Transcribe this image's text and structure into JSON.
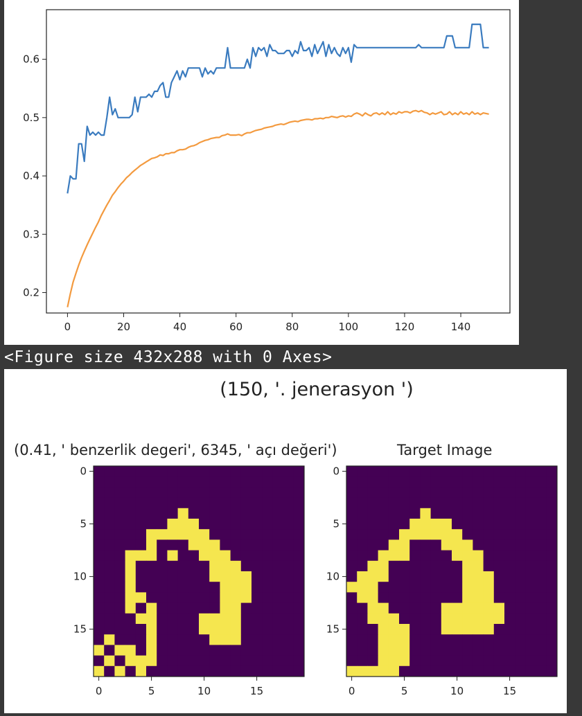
{
  "figure_caption": "<Figure size 432x288 with 0 Axes>",
  "colors": {
    "series_1": "#3a7bbf",
    "series_2": "#f39a3f",
    "low": "#440154",
    "high": "#f5e64f"
  },
  "chart_data": [
    {
      "type": "line",
      "xlim": [
        -7.5,
        157.5
      ],
      "ylim": [
        0.165,
        0.685
      ],
      "xticks": [
        0,
        20,
        40,
        60,
        80,
        100,
        120,
        140
      ],
      "yticks": [
        0.2,
        0.3,
        0.4,
        0.5,
        0.6
      ],
      "grid": false,
      "series": [
        {
          "color": "#3a7bbf",
          "x": [
            0,
            1,
            2,
            3,
            4,
            5,
            6,
            7,
            8,
            9,
            10,
            11,
            12,
            13,
            14,
            15,
            16,
            17,
            18,
            19,
            20,
            21,
            22,
            23,
            24,
            25,
            26,
            27,
            28,
            29,
            30,
            31,
            32,
            33,
            34,
            35,
            36,
            37,
            38,
            39,
            40,
            41,
            42,
            43,
            44,
            45,
            46,
            47,
            48,
            49,
            50,
            51,
            52,
            53,
            54,
            55,
            56,
            57,
            58,
            59,
            60,
            61,
            62,
            63,
            64,
            65,
            66,
            67,
            68,
            69,
            70,
            71,
            72,
            73,
            74,
            75,
            76,
            77,
            78,
            79,
            80,
            81,
            82,
            83,
            84,
            85,
            86,
            87,
            88,
            89,
            90,
            91,
            92,
            93,
            94,
            95,
            96,
            97,
            98,
            99,
            100,
            101,
            102,
            103,
            104,
            105,
            106,
            107,
            108,
            109,
            110,
            111,
            112,
            113,
            114,
            115,
            116,
            117,
            118,
            119,
            120,
            121,
            122,
            123,
            124,
            125,
            126,
            127,
            128,
            129,
            130,
            131,
            132,
            133,
            134,
            135,
            136,
            137,
            138,
            139,
            140,
            141,
            142,
            143,
            144,
            145,
            146,
            147,
            148,
            149,
            150
          ],
          "y": [
            0.37,
            0.4,
            0.395,
            0.395,
            0.455,
            0.455,
            0.425,
            0.485,
            0.47,
            0.475,
            0.47,
            0.475,
            0.47,
            0.47,
            0.5,
            0.535,
            0.505,
            0.515,
            0.5,
            0.5,
            0.5,
            0.5,
            0.5,
            0.505,
            0.535,
            0.51,
            0.535,
            0.535,
            0.535,
            0.54,
            0.535,
            0.545,
            0.545,
            0.555,
            0.56,
            0.535,
            0.535,
            0.56,
            0.57,
            0.58,
            0.565,
            0.58,
            0.57,
            0.585,
            0.585,
            0.585,
            0.585,
            0.585,
            0.57,
            0.585,
            0.575,
            0.58,
            0.575,
            0.585,
            0.585,
            0.585,
            0.585,
            0.62,
            0.585,
            0.585,
            0.585,
            0.585,
            0.585,
            0.585,
            0.6,
            0.585,
            0.62,
            0.605,
            0.62,
            0.615,
            0.62,
            0.605,
            0.625,
            0.615,
            0.615,
            0.61,
            0.61,
            0.61,
            0.615,
            0.615,
            0.605,
            0.615,
            0.61,
            0.63,
            0.615,
            0.615,
            0.62,
            0.605,
            0.625,
            0.61,
            0.62,
            0.63,
            0.605,
            0.625,
            0.61,
            0.62,
            0.61,
            0.605,
            0.62,
            0.61,
            0.62,
            0.595,
            0.625,
            0.62,
            0.62,
            0.62,
            0.62,
            0.62,
            0.62,
            0.62,
            0.62,
            0.62,
            0.62,
            0.62,
            0.62,
            0.62,
            0.62,
            0.62,
            0.62,
            0.62,
            0.62,
            0.62,
            0.62,
            0.62,
            0.62,
            0.625,
            0.62,
            0.62,
            0.62,
            0.62,
            0.62,
            0.62,
            0.62,
            0.62,
            0.62,
            0.64,
            0.64,
            0.64,
            0.62,
            0.62,
            0.62,
            0.62,
            0.62,
            0.62,
            0.66,
            0.66,
            0.66,
            0.66,
            0.62,
            0.62,
            0.62
          ]
        },
        {
          "color": "#f39a3f",
          "x": [
            0,
            1,
            2,
            3,
            4,
            5,
            6,
            7,
            8,
            9,
            10,
            11,
            12,
            13,
            14,
            15,
            16,
            17,
            18,
            19,
            20,
            21,
            22,
            23,
            24,
            25,
            26,
            27,
            28,
            29,
            30,
            31,
            32,
            33,
            34,
            35,
            36,
            37,
            38,
            39,
            40,
            41,
            42,
            43,
            44,
            45,
            46,
            47,
            48,
            49,
            50,
            51,
            52,
            53,
            54,
            55,
            56,
            57,
            58,
            59,
            60,
            61,
            62,
            63,
            64,
            65,
            66,
            67,
            68,
            69,
            70,
            71,
            72,
            73,
            74,
            75,
            76,
            77,
            78,
            79,
            80,
            81,
            82,
            83,
            84,
            85,
            86,
            87,
            88,
            89,
            90,
            91,
            92,
            93,
            94,
            95,
            96,
            97,
            98,
            99,
            100,
            101,
            102,
            103,
            104,
            105,
            106,
            107,
            108,
            109,
            110,
            111,
            112,
            113,
            114,
            115,
            116,
            117,
            118,
            119,
            120,
            121,
            122,
            123,
            124,
            125,
            126,
            127,
            128,
            129,
            130,
            131,
            132,
            133,
            134,
            135,
            136,
            137,
            138,
            139,
            140,
            141,
            142,
            143,
            144,
            145,
            146,
            147,
            148,
            149,
            150
          ],
          "y": [
            0.175,
            0.198,
            0.218,
            0.233,
            0.247,
            0.26,
            0.271,
            0.282,
            0.292,
            0.302,
            0.312,
            0.321,
            0.332,
            0.341,
            0.35,
            0.358,
            0.367,
            0.373,
            0.38,
            0.386,
            0.391,
            0.397,
            0.401,
            0.406,
            0.41,
            0.414,
            0.418,
            0.421,
            0.424,
            0.427,
            0.43,
            0.431,
            0.433,
            0.436,
            0.435,
            0.438,
            0.438,
            0.44,
            0.44,
            0.443,
            0.445,
            0.445,
            0.446,
            0.449,
            0.451,
            0.452,
            0.454,
            0.457,
            0.459,
            0.461,
            0.462,
            0.464,
            0.465,
            0.466,
            0.466,
            0.469,
            0.47,
            0.472,
            0.47,
            0.47,
            0.47,
            0.471,
            0.469,
            0.472,
            0.474,
            0.474,
            0.476,
            0.478,
            0.479,
            0.48,
            0.482,
            0.483,
            0.484,
            0.485,
            0.487,
            0.488,
            0.489,
            0.488,
            0.49,
            0.492,
            0.493,
            0.494,
            0.493,
            0.495,
            0.496,
            0.497,
            0.497,
            0.496,
            0.498,
            0.498,
            0.499,
            0.498,
            0.5,
            0.5,
            0.502,
            0.501,
            0.5,
            0.502,
            0.503,
            0.501,
            0.503,
            0.502,
            0.506,
            0.508,
            0.506,
            0.503,
            0.508,
            0.505,
            0.503,
            0.507,
            0.508,
            0.505,
            0.508,
            0.505,
            0.51,
            0.505,
            0.508,
            0.506,
            0.51,
            0.508,
            0.51,
            0.51,
            0.508,
            0.511,
            0.512,
            0.51,
            0.512,
            0.509,
            0.508,
            0.505,
            0.508,
            0.506,
            0.508,
            0.51,
            0.505,
            0.506,
            0.51,
            0.505,
            0.508,
            0.505,
            0.51,
            0.506,
            0.508,
            0.505,
            0.51,
            0.506,
            0.508,
            0.505,
            0.508,
            0.507,
            0.506
          ]
        }
      ]
    },
    {
      "type": "heatmap",
      "suptitle": "(150, '. jenerasyon ')",
      "title": "(0.41, ' benzerlik degeri', 6345, ' açı değeri')",
      "ticks": [
        0,
        5,
        10,
        15
      ],
      "rows": [
        "00000000000000000000",
        "00000000000000000000",
        "00000000000000000000",
        "00000000000000000000",
        "00000000100000000000",
        "00000001110000000000",
        "00000111111000000000",
        "00000100011100000000",
        "00011101001110000000",
        "00010000000111000000",
        "00010000000111100000",
        "00010000000011100000",
        "00011000000011100000",
        "00010100000011000000",
        "00001100001111000000",
        "00000100001111000000",
        "01000100000111000000",
        "10110100000000000000",
        "01011100000000000000",
        "10101000000000000000"
      ]
    },
    {
      "type": "heatmap",
      "title": "Target Image",
      "ticks": [
        0,
        5,
        10,
        15
      ],
      "rows": [
        "00000000000000000000",
        "00000000000000000000",
        "00000000000000000000",
        "00000000000000000000",
        "00000001000000000000",
        "00000011110000000000",
        "00000111111000000000",
        "00001100011100000000",
        "00011100001110000000",
        "00110000000110000000",
        "01110000000111000000",
        "11100000000111000000",
        "01100000000111000000",
        "00110000011111100000",
        "00111000011111100000",
        "00011100011111000000",
        "00011100000000000000",
        "00011100000000000000",
        "00011100000000000000",
        "11111000000000000000"
      ]
    }
  ]
}
